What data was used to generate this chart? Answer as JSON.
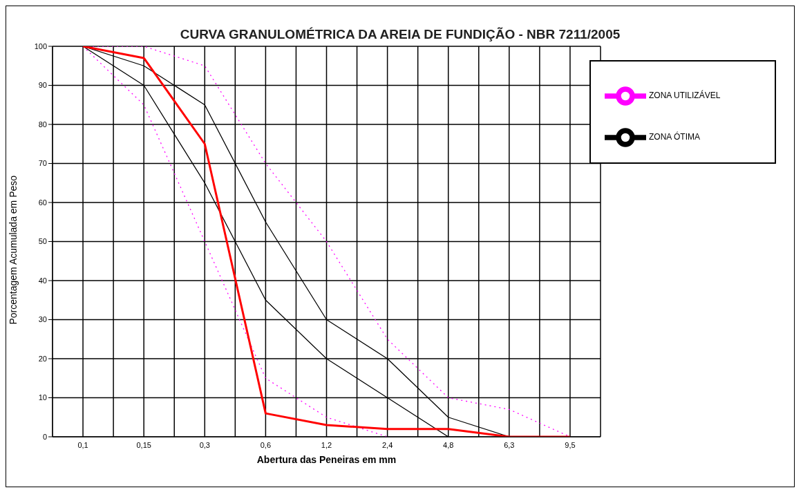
{
  "chart_data": {
    "type": "line",
    "title": "CURVA GRANULOMÉTRICA DA AREIA DE FUNDIÇÃO - NBR 7211/2005",
    "xlabel": "Abertura das Peneiras em mm",
    "ylabel": "Porcentagem Acumulada em Peso",
    "categories": [
      "0,1",
      "0,15",
      "0,3",
      "0,6",
      "1,2",
      "2,4",
      "4,8",
      "6,3",
      "9,5"
    ],
    "ylim": [
      0,
      100
    ],
    "yticks": [
      0,
      10,
      20,
      30,
      40,
      50,
      60,
      70,
      80,
      90,
      100
    ],
    "grid": true,
    "legend": "top right",
    "marker": "none",
    "series": [
      {
        "name": "ZONA UTILIZÁVEL",
        "color": "#ff00ff",
        "line_style": "dotted",
        "values": [
          100,
          100,
          95,
          70,
          50,
          25,
          10,
          7,
          0
        ]
      },
      {
        "color": "#ff00ff",
        "line_style": "dotted",
        "values": [
          100,
          85,
          50,
          15,
          5,
          0,
          null,
          null,
          null
        ]
      },
      {
        "name": "ZONA ÓTIMA",
        "color": "#000000",
        "line_style": "solid",
        "values": [
          100,
          95,
          85,
          55,
          30,
          20,
          5,
          0,
          null
        ]
      },
      {
        "color": "#000000",
        "line_style": "solid",
        "values": [
          100,
          90,
          65,
          35,
          20,
          10,
          0,
          null,
          null
        ]
      },
      {
        "color": "#ff0000",
        "line_style": "solid",
        "values": [
          100,
          97,
          75,
          6,
          3,
          2,
          2,
          0,
          0
        ]
      }
    ]
  }
}
